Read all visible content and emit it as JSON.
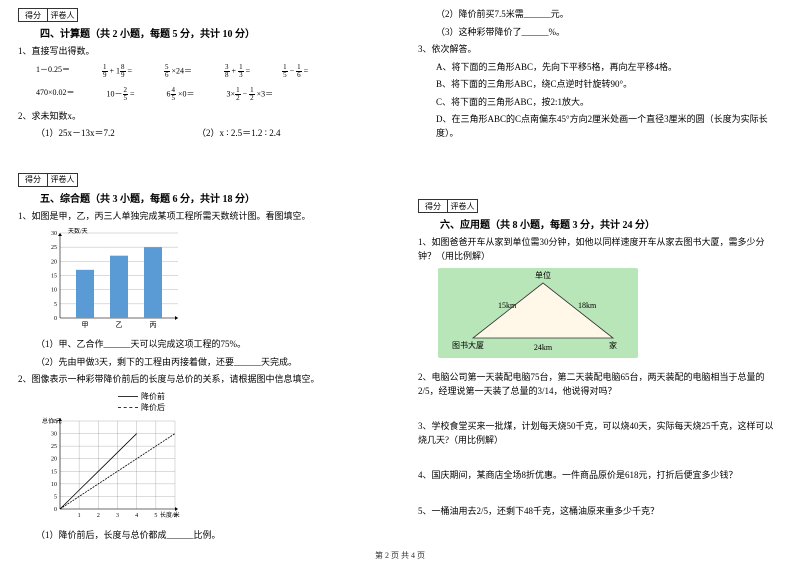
{
  "scorebox": {
    "l1": "得分",
    "l2": "评卷人"
  },
  "sec4": {
    "title": "四、计算题（共 2 小题，每题 5 分，共计 10 分）",
    "q1": "1、直接写出得数。",
    "row1": [
      "1－0.25＝",
      "1/9 + 1 8/9 =",
      "5/6 × 24 =",
      "3/8 + 1/3 =",
      "1/5 − 1/6 ="
    ],
    "row2": [
      "470×0.02＝",
      "10－2/5 =",
      "6 4/5 × 0 =",
      "3× 1/2 − 1/2 ×3＝"
    ],
    "q2": "2、求未知数x。",
    "q2a": "（1）25x－13x＝7.2",
    "q2b": "（2）x ∶ 2.5＝1.2 ∶ 2.4"
  },
  "sec5": {
    "title": "五、综合题（共 3 小题，每题 6 分，共计 18 分）",
    "q1": "1、如图是甲，乙，丙三人单独完成某项工程所需天数统计图。看图填空。",
    "bar": {
      "ylabel": "天数/天",
      "ymax": 30,
      "ystep": 5,
      "cats": [
        "甲",
        "乙",
        "丙"
      ],
      "vals": [
        17,
        22,
        25
      ],
      "bar_color": "#5b9bd5",
      "grid_color": "#888"
    },
    "q1a": "（1）甲、乙合作______天可以完成这项工程的75%。",
    "q1b": "（2）先由甲做3天，剩下的工程由丙接着做，还要______天完成。",
    "q2": "2、图像表示一种彩带降价前后的长度与总价的关系，请根据图中信息填空。",
    "legend1": "降价前",
    "legend2": "降价后",
    "line": {
      "xlabel": "长度/米",
      "ylabel": "总价/元",
      "xmax": 6,
      "ymax": 35,
      "x_ticks": [
        1,
        2,
        3,
        4,
        5,
        6
      ],
      "y_ticks": [
        5,
        10,
        15,
        20,
        25,
        30,
        35
      ],
      "series1": [
        [
          0,
          0
        ],
        [
          1,
          7.5
        ],
        [
          2,
          15
        ],
        [
          3,
          22.5
        ],
        [
          4,
          30
        ]
      ],
      "series2": [
        [
          0,
          0
        ],
        [
          1,
          5
        ],
        [
          2,
          10
        ],
        [
          3,
          15
        ],
        [
          4,
          20
        ],
        [
          5,
          25
        ],
        [
          6,
          30
        ]
      ],
      "grid_color": "#888"
    },
    "q2a": "（1）降价前后，长度与总价都成______比例。"
  },
  "right_top": {
    "l1": "（2）降价前买7.5米需______元。",
    "l2": "（3）这种彩带降价了______%。",
    "q3": "3、依次解答。",
    "q3a": "A、将下面的三角形ABC，先向下平移5格，再向左平移4格。",
    "q3b": "B、将下面的三角形ABC，绕C点逆时针旋转90°。",
    "q3c": "C、将下面的三角形ABC，按2:1放大。",
    "q3d": "D、在三角形ABC的C点南偏东45°方向2厘米处画一个直径3厘米的圆（长度为实际长度）。"
  },
  "sec6": {
    "title": "六、应用题（共 8 小题，每题 3 分，共计 24 分）",
    "q1": "1、如图爸爸开车从家到单位需30分钟，如他以同样速度开车从家去图书大厦，需多少分钟？（用比例解）",
    "tri": {
      "top": "单位",
      "left": "图书大厦",
      "right": "家",
      "l15": "15km",
      "l18": "18km",
      "l24": "24km"
    },
    "q2": "2、电脑公司第一天装配电脑75台，第二天装配电脑65台，两天装配的电脑相当于总量的2/5，经理说第一天装了总量的3/14，他说得对吗？",
    "q3": "3、学校食堂买来一批煤，计划每天烧50千克，可以烧40天，实际每天烧25千克，这样可以烧几天?（用比例解）",
    "q4": "4、国庆期间，某商店全场8折优惠。一件商品原价是618元，打折后便宜多少钱？",
    "q5": "5、一桶油用去2/5，还剩下48千克，这桶油原来重多少千克？"
  },
  "footer": "第 2 页 共 4 页"
}
